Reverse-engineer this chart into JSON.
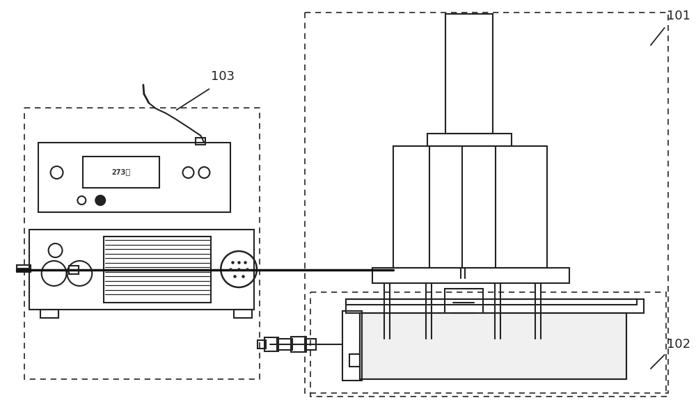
{
  "bg_color": "#ffffff",
  "line_color": "#222222",
  "lw": 1.5,
  "lw_thin": 1.0,
  "lw_cable": 2.5,
  "lw_dash": 1.2,
  "label_fontsize": 13,
  "dash_seq": [
    5,
    4
  ]
}
